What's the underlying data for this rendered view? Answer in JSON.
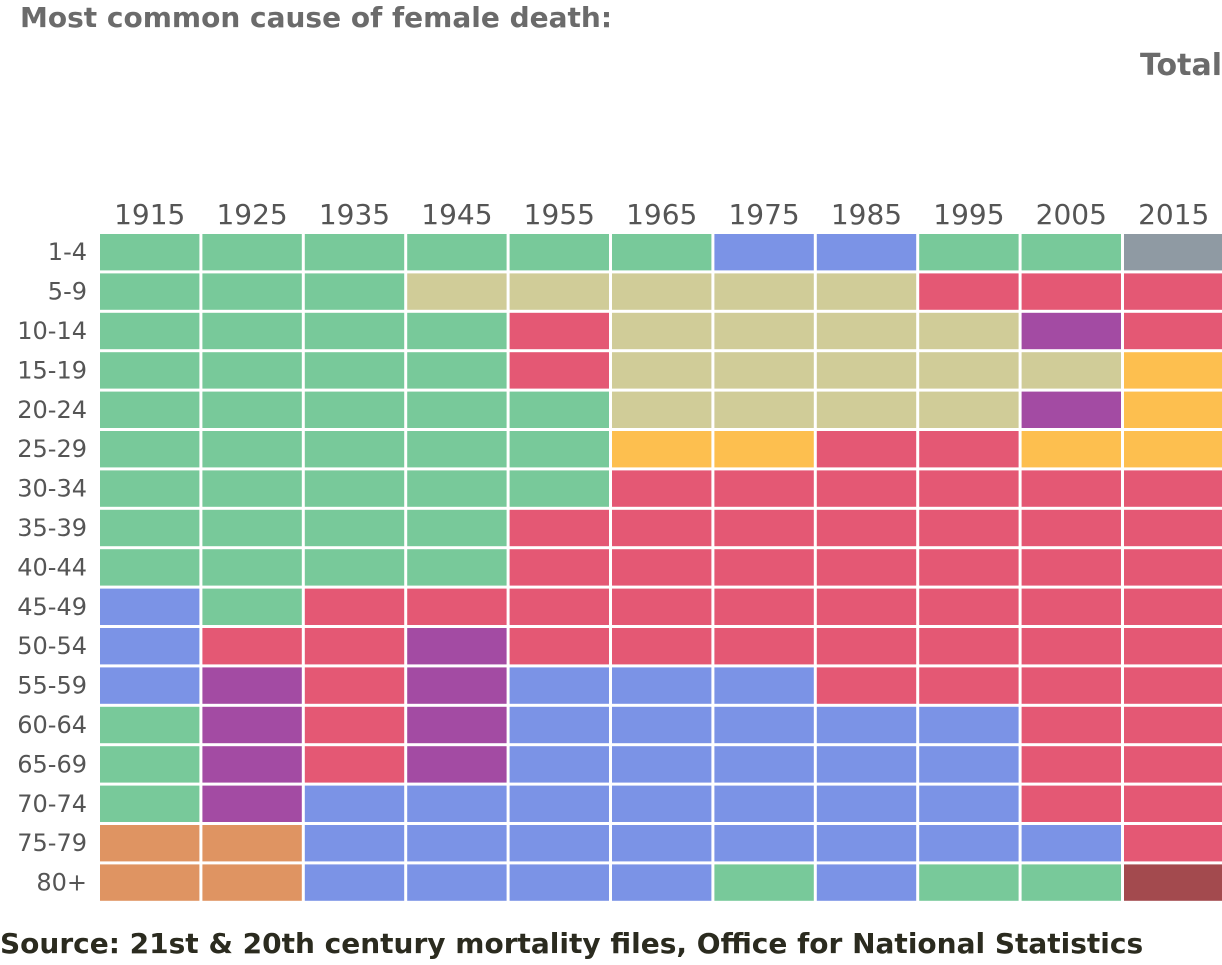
{
  "title": "Most common cause of female death:",
  "subtitle": "Total",
  "source": "Source: 21st & 20th century mortality files, Office for National Statistics",
  "chart_data": {
    "type": "heatmap",
    "title": "Most common cause of female death:",
    "subtitle": "Total",
    "x": [
      "1915",
      "1925",
      "1935",
      "1945",
      "1955",
      "1965",
      "1975",
      "1985",
      "1995",
      "2005",
      "2015"
    ],
    "y": [
      "1-4",
      "5-9",
      "10-14",
      "15-19",
      "20-24",
      "25-29",
      "30-34",
      "35-39",
      "40-44",
      "45-49",
      "50-54",
      "55-59",
      "60-64",
      "65-69",
      "70-74",
      "75-79",
      "80+"
    ],
    "palette": {
      "green": "#78c99a",
      "blue": "#7b93e6",
      "grey": "#8f9aa3",
      "khaki": "#d0cc98",
      "red": "#e45874",
      "purple": "#a34ba3",
      "yellow": "#fdbf4f",
      "orange": "#df9462",
      "darkred": "#a34a4e"
    },
    "cells": [
      [
        "green",
        "green",
        "green",
        "green",
        "green",
        "green",
        "blue",
        "blue",
        "green",
        "green",
        "grey"
      ],
      [
        "green",
        "green",
        "green",
        "khaki",
        "khaki",
        "khaki",
        "khaki",
        "khaki",
        "red",
        "red",
        "red"
      ],
      [
        "green",
        "green",
        "green",
        "green",
        "red",
        "khaki",
        "khaki",
        "khaki",
        "khaki",
        "purple",
        "red"
      ],
      [
        "green",
        "green",
        "green",
        "green",
        "red",
        "khaki",
        "khaki",
        "khaki",
        "khaki",
        "khaki",
        "yellow"
      ],
      [
        "green",
        "green",
        "green",
        "green",
        "green",
        "khaki",
        "khaki",
        "khaki",
        "khaki",
        "purple",
        "yellow"
      ],
      [
        "green",
        "green",
        "green",
        "green",
        "green",
        "yellow",
        "yellow",
        "red",
        "red",
        "yellow",
        "yellow"
      ],
      [
        "green",
        "green",
        "green",
        "green",
        "green",
        "red",
        "red",
        "red",
        "red",
        "red",
        "red"
      ],
      [
        "green",
        "green",
        "green",
        "green",
        "red",
        "red",
        "red",
        "red",
        "red",
        "red",
        "red"
      ],
      [
        "green",
        "green",
        "green",
        "green",
        "red",
        "red",
        "red",
        "red",
        "red",
        "red",
        "red"
      ],
      [
        "blue",
        "green",
        "red",
        "red",
        "red",
        "red",
        "red",
        "red",
        "red",
        "red",
        "red"
      ],
      [
        "blue",
        "red",
        "red",
        "purple",
        "red",
        "red",
        "red",
        "red",
        "red",
        "red",
        "red"
      ],
      [
        "blue",
        "purple",
        "red",
        "purple",
        "blue",
        "blue",
        "blue",
        "red",
        "red",
        "red",
        "red"
      ],
      [
        "green",
        "purple",
        "red",
        "purple",
        "blue",
        "blue",
        "blue",
        "blue",
        "blue",
        "red",
        "red"
      ],
      [
        "green",
        "purple",
        "red",
        "purple",
        "blue",
        "blue",
        "blue",
        "blue",
        "blue",
        "red",
        "red"
      ],
      [
        "green",
        "purple",
        "blue",
        "blue",
        "blue",
        "blue",
        "blue",
        "blue",
        "blue",
        "red",
        "red"
      ],
      [
        "orange",
        "orange",
        "blue",
        "blue",
        "blue",
        "blue",
        "blue",
        "blue",
        "blue",
        "blue",
        "red"
      ],
      [
        "orange",
        "orange",
        "blue",
        "blue",
        "blue",
        "blue",
        "green",
        "blue",
        "green",
        "green",
        "darkred"
      ]
    ],
    "legend": "none",
    "grid": false
  }
}
